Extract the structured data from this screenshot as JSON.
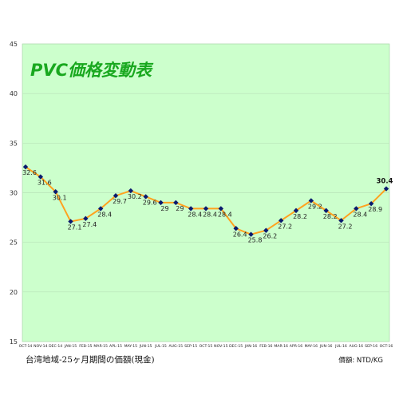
{
  "title": "PVC価格変動表",
  "footer_left": "台湾地域-25ヶ月期間の価額(現金)",
  "footer_right": "價額: NTD/KG",
  "colors": {
    "plot_bg": "#ccffcc",
    "grid": "#b9e2b9",
    "line": "#ffa21f",
    "marker": "#0a1a6e",
    "title": "#19a81f"
  },
  "chart_data": {
    "type": "line",
    "categories": [
      "OCT-14",
      "NOV-14",
      "DEC-14",
      "JAN-15",
      "FEB-15",
      "MAR-15",
      "APL-15",
      "MAY-15",
      "JUN-15",
      "JUL-15",
      "AUG-15",
      "SEP-15",
      "OCT-15",
      "NOV-15",
      "DEC-15",
      "JAN-16",
      "FEB-16",
      "MAR-16",
      "APR-16",
      "MAY-16",
      "JUN-16",
      "JUL-16",
      "AUG-16",
      "SEP-16",
      "OCT-16"
    ],
    "values": [
      32.6,
      31.6,
      30.1,
      27.1,
      27.4,
      28.4,
      29.7,
      30.2,
      29.6,
      29,
      29,
      28.4,
      28.4,
      28.4,
      26.4,
      25.8,
      26.2,
      27.2,
      28.2,
      29.2,
      28.2,
      27.2,
      28.4,
      28.9,
      30.4
    ],
    "data_labels": [
      "32.6",
      "31.6",
      "30.1",
      "27.1",
      "27.4",
      "28.4",
      "29.7",
      "30.2",
      "29.6",
      "29",
      "29",
      "28.4",
      "28.4",
      "28.4",
      "26.4",
      "25.8",
      "26.2",
      "27.2",
      "28.2",
      "29.2",
      "28.2",
      "27.2",
      "28.4",
      "28.9",
      "30.4"
    ],
    "ylim": [
      15,
      45
    ],
    "yticks": [
      15,
      20,
      25,
      30,
      35,
      40,
      45
    ],
    "grid": true
  }
}
